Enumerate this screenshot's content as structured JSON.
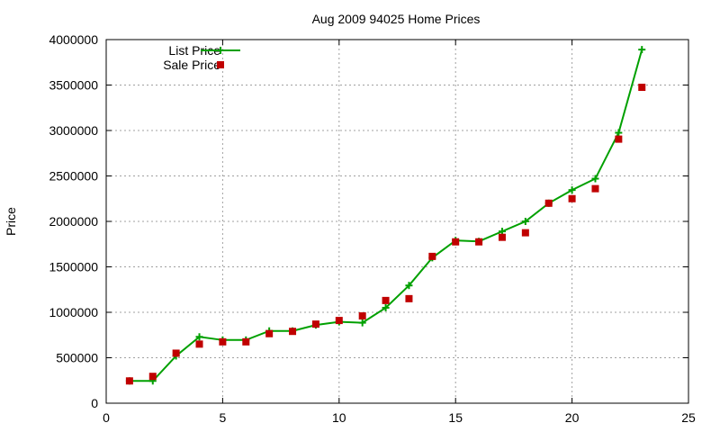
{
  "chart_data": {
    "type": "line",
    "title": "Aug 2009 94025 Home Prices",
    "xlabel": "",
    "ylabel": "Price",
    "xlim": [
      0,
      25
    ],
    "ylim": [
      0,
      4000000
    ],
    "xticks": [
      "0",
      "5",
      "10",
      "15",
      "20",
      "25"
    ],
    "yticks": [
      "0",
      "500000",
      "1000000",
      "1500000",
      "2000000",
      "2500000",
      "3000000",
      "3500000",
      "4000000"
    ],
    "grid": true,
    "legend_position": "top-left",
    "series": [
      {
        "name": "List Price",
        "style": "line-points",
        "marker": "plus",
        "color": "#00a000",
        "x": [
          1,
          2,
          3,
          4,
          5,
          6,
          7,
          8,
          9,
          10,
          11,
          12,
          13,
          14,
          15,
          16,
          17,
          18,
          19,
          20,
          21,
          22,
          23
        ],
        "values": [
          245000,
          245000,
          520000,
          730000,
          695000,
          695000,
          795000,
          795000,
          860000,
          895000,
          885000,
          1050000,
          1295000,
          1600000,
          1790000,
          1780000,
          1890000,
          2000000,
          2200000,
          2345000,
          2470000,
          2975000,
          3890000
        ]
      },
      {
        "name": "Sale Price",
        "style": "points",
        "marker": "square",
        "color": "#c00000",
        "x": [
          1,
          2,
          3,
          4,
          5,
          6,
          7,
          8,
          9,
          10,
          11,
          12,
          13,
          14,
          15,
          16,
          17,
          18,
          19,
          20,
          21,
          22,
          23
        ],
        "values": [
          245000,
          295000,
          550000,
          650000,
          675000,
          675000,
          765000,
          790000,
          870000,
          910000,
          960000,
          1130000,
          1150000,
          1615000,
          1775000,
          1775000,
          1825000,
          1875000,
          2200000,
          2250000,
          2360000,
          2905000,
          3475000
        ]
      }
    ]
  }
}
